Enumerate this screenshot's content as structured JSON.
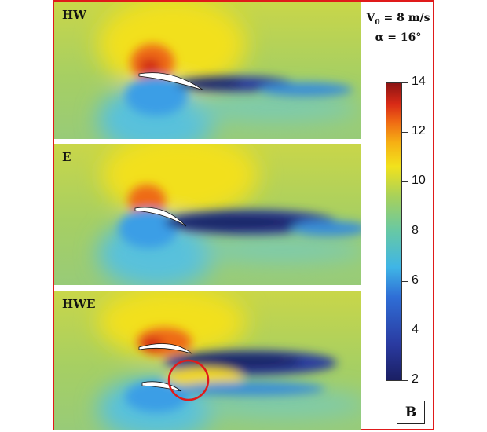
{
  "panels": [
    {
      "label": "HW"
    },
    {
      "label": "E"
    },
    {
      "label": "HWE"
    }
  ],
  "conditions": {
    "v0_prefix": "V",
    "v0_sub": "0",
    "v0_rest": " = 8 m/s",
    "alpha": "α = 16°"
  },
  "colorbar": {
    "ticks": [
      "14",
      "12",
      "10",
      "8",
      "6",
      "4",
      "2"
    ],
    "min": 2,
    "max": 14
  },
  "badge": "B",
  "colors": {
    "frame": "#e01a1a",
    "highlight_circle": "#e01a1a"
  }
}
